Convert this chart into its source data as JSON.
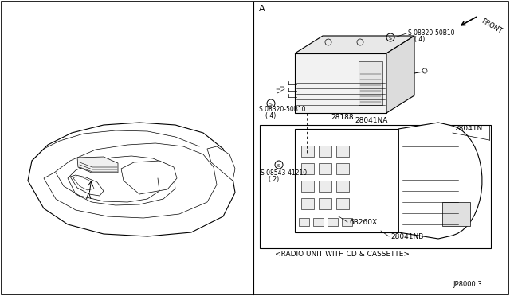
{
  "background_color": "#ffffff",
  "fig_width": 6.4,
  "fig_height": 3.72,
  "dpi": 100,
  "label_A_left": "A",
  "label_A_right": "A",
  "front_label": "FRONT",
  "parts": {
    "screw_top": "S 08320-50B10",
    "screw_top_qty": "( 4)",
    "screw_bot": "S 08320-50B10",
    "screw_bot_qty": "( 4)",
    "p28188": "28188",
    "p28041N": "28041N",
    "p28041NA": "28041NA",
    "screw_left": "S 08543-41210",
    "screw_left_qty": "( 2)",
    "p6B260X": "6B260X",
    "p28041NB": "28041NB",
    "caption": "<RADIO UNIT WITH CD & CASSETTE>",
    "jp_code": "JP8000 3"
  }
}
